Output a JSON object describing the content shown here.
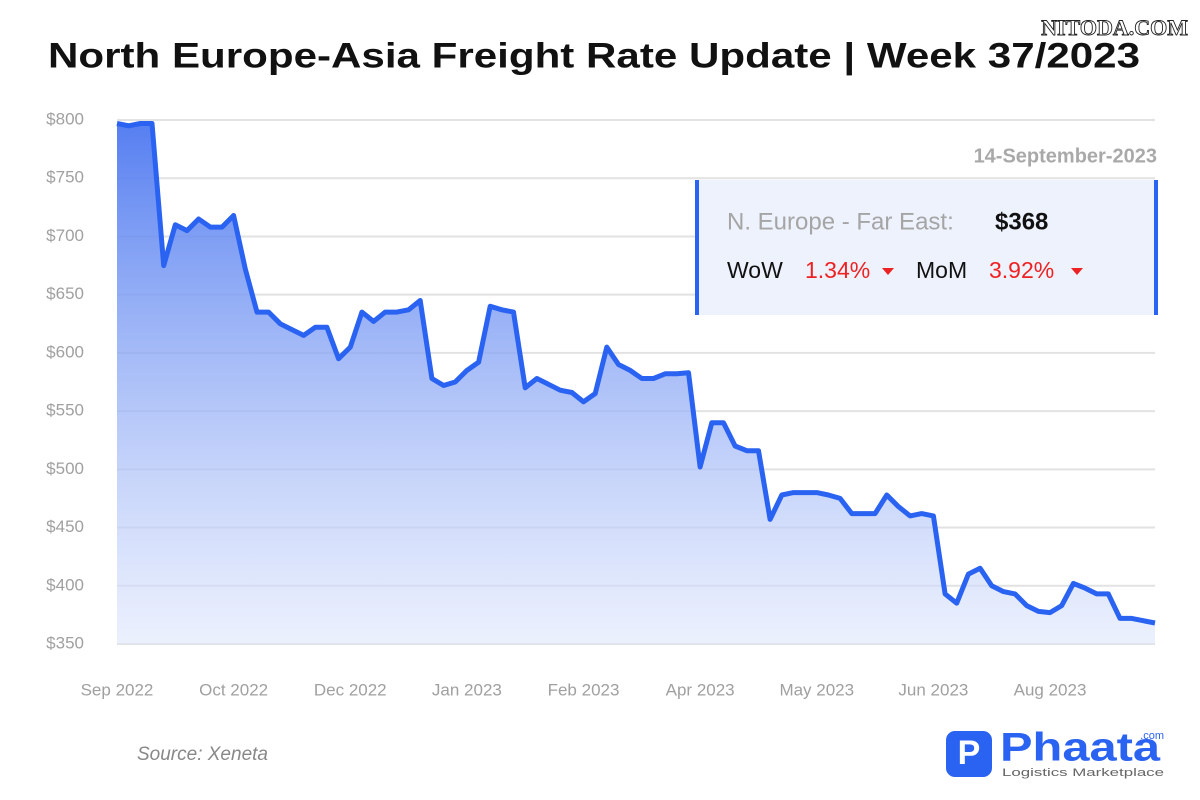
{
  "chart_data": {
    "type": "area",
    "title": "North Europe-Asia Freight Rate Update | Week 37/2023",
    "watermark": "NITODA.COM",
    "source": "Source: Xeneta",
    "brand": {
      "name": "Phaata",
      "suffix": ".com",
      "tagline": "Logistics Marketplace"
    },
    "card": {
      "date": "14-September-2023",
      "route": "N. Europe - Far East:",
      "price": "$368",
      "wow_label": "WoW",
      "wow": "1.34%",
      "mom_label": "MoM",
      "mom": "3.92%"
    },
    "color": "#2a63f1",
    "grid": true,
    "ylim": [
      350,
      800
    ],
    "yticks": [
      {
        "value": 350,
        "label": "$350"
      },
      {
        "value": 400,
        "label": "$400"
      },
      {
        "value": 450,
        "label": "$450"
      },
      {
        "value": 500,
        "label": "$500"
      },
      {
        "value": 550,
        "label": "$550"
      },
      {
        "value": 600,
        "label": "$600"
      },
      {
        "value": 650,
        "label": "$650"
      },
      {
        "value": 700,
        "label": "$700"
      },
      {
        "value": 750,
        "label": "$750"
      },
      {
        "value": 800,
        "label": "$800"
      }
    ],
    "categories": [
      "Sep 2022",
      null,
      null,
      null,
      null,
      null,
      null,
      null,
      null,
      null,
      "Oct 2022",
      null,
      null,
      null,
      null,
      null,
      null,
      null,
      null,
      null,
      "Dec 2022",
      null,
      null,
      null,
      null,
      null,
      null,
      null,
      null,
      null,
      "Jan 2023",
      null,
      null,
      null,
      null,
      null,
      null,
      null,
      null,
      null,
      "Feb 2023",
      null,
      null,
      null,
      null,
      null,
      null,
      null,
      null,
      null,
      "Apr 2023",
      null,
      null,
      null,
      null,
      null,
      null,
      null,
      null,
      null,
      "May 2023",
      null,
      null,
      null,
      null,
      null,
      null,
      null,
      null,
      null,
      "Jun 2023",
      null,
      null,
      null,
      null,
      null,
      null,
      null,
      null,
      null,
      "Aug 2023",
      null,
      null,
      null,
      null,
      null,
      null,
      null,
      null,
      null
    ],
    "values": [
      797,
      795,
      797,
      797,
      675,
      710,
      705,
      715,
      708,
      708,
      718,
      672,
      635,
      635,
      625,
      620,
      615,
      622,
      622,
      595,
      605,
      635,
      627,
      635,
      635,
      637,
      645,
      578,
      572,
      575,
      585,
      592,
      640,
      637,
      635,
      570,
      578,
      573,
      568,
      566,
      558,
      565,
      605,
      590,
      585,
      578,
      578,
      582,
      582,
      583,
      502,
      540,
      540,
      520,
      516,
      516,
      457,
      478,
      480,
      480,
      480,
      478,
      475,
      462,
      462,
      462,
      478,
      468,
      460,
      462,
      460,
      393,
      385,
      410,
      415,
      400,
      395,
      393,
      383,
      378,
      377,
      383,
      402,
      398,
      393,
      393,
      372,
      372,
      370,
      368
    ]
  }
}
